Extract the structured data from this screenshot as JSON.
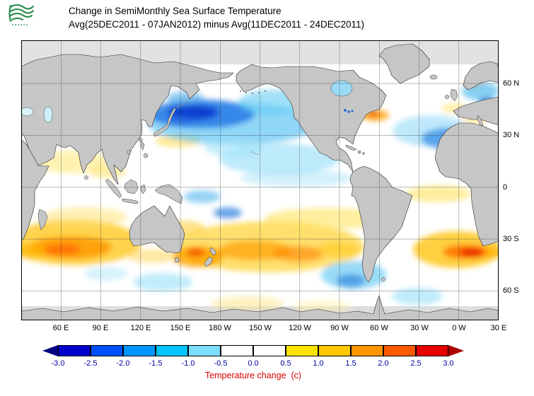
{
  "header": {
    "logo_name": "green-waves-logo",
    "title_line1": "Change in SemiMonthly Sea Surface Temperature",
    "title_line2": "Avg(25DEC2011 - 07JAN2012) minus Avg(11DEC2011 - 24DEC2011)"
  },
  "map": {
    "x_tick_labels": [
      "60 E",
      "90 E",
      "120 E",
      "150 E",
      "180 W",
      "150 W",
      "120 W",
      "90 W",
      "60 W",
      "30 W",
      "0 W",
      "30 E"
    ],
    "y_tick_labels": [
      "60 N",
      "30 N",
      "0",
      "30 S",
      "60 S"
    ],
    "land_color": "#c6c6c6",
    "ocean_neutral_color": "#ffffff",
    "grid_line_color": "#3a3a3a"
  },
  "colorbar": {
    "tick_labels": [
      "-3.0",
      "-2.5",
      "-2.0",
      "-1.5",
      "-1.0",
      "-0.5",
      "0.0",
      "0.5",
      "1.0",
      "1.5",
      "2.0",
      "2.5",
      "3.0"
    ],
    "segment_colors": [
      "#0000cd",
      "#0050ff",
      "#0096ff",
      "#00c3ff",
      "#7ddcff",
      "#ffffff",
      "#ffffff",
      "#ffe400",
      "#ffc800",
      "#ff9600",
      "#ff5a00",
      "#e60000"
    ],
    "left_arrow_color": "#000080",
    "right_arrow_color": "#aa0000",
    "tick_label_color": "#0000a0",
    "caption": "Temperature change  (c)",
    "caption_color": "#dd0000"
  }
}
